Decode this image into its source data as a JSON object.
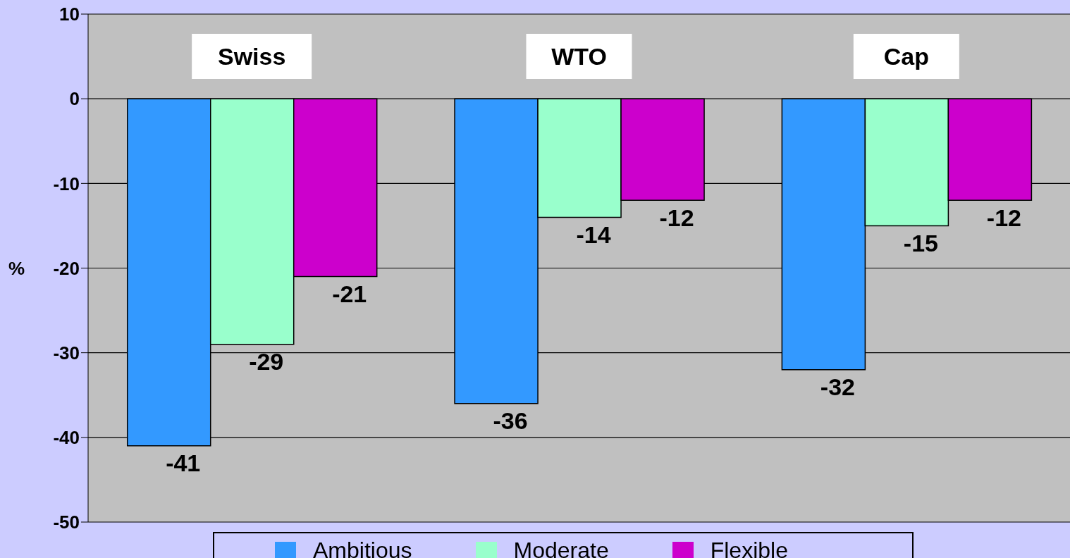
{
  "chart_data": {
    "type": "bar",
    "ylabel": "%",
    "categories": [
      "Swiss",
      "WTO",
      "Cap"
    ],
    "series": [
      {
        "name": "Ambitious",
        "color": "#3399ff",
        "values": [
          -41,
          -36,
          -32
        ]
      },
      {
        "name": "Moderate",
        "color": "#99ffcc",
        "values": [
          -29,
          -14,
          -15
        ]
      },
      {
        "name": "Flexible",
        "color": "#cc00cc",
        "values": [
          -21,
          -12,
          -12
        ]
      }
    ],
    "ylim": [
      -50,
      10
    ],
    "yticks": [
      -50,
      -40,
      -30,
      -20,
      -10,
      0,
      10
    ],
    "grid": "y",
    "legend": "bottom",
    "data_labels": true
  }
}
